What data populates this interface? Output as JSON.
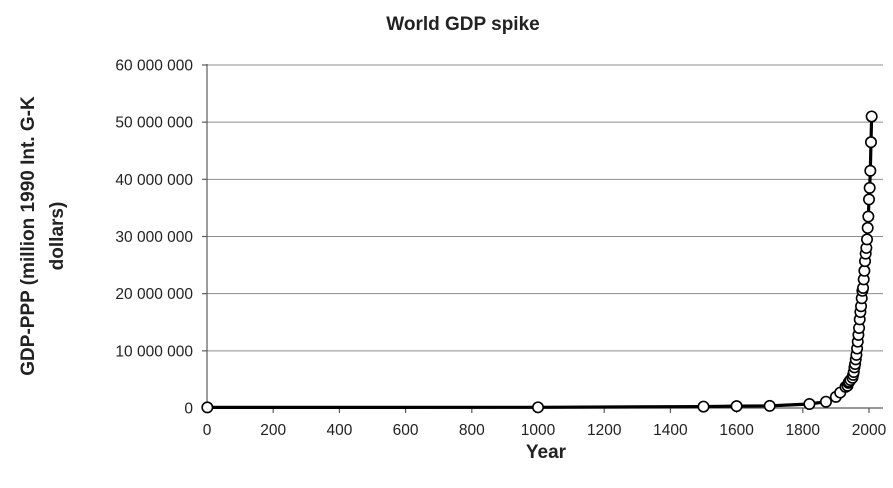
{
  "chart_data": {
    "type": "line",
    "title": "World GDP spike",
    "xlabel": "Year",
    "ylabel_lines": [
      "GDP-PPP (million 1990 Int. G-K",
      "dollars)"
    ],
    "xlim": [
      0,
      2000
    ],
    "ylim": [
      0,
      60000000
    ],
    "x_ticks": [
      0,
      200,
      400,
      600,
      800,
      1000,
      1200,
      1400,
      1600,
      1800,
      2000
    ],
    "y_ticks": [
      0,
      10000000,
      20000000,
      30000000,
      40000000,
      50000000,
      60000000
    ],
    "y_tick_labels": [
      "0",
      "10 000 000",
      "20 000 000",
      "30 000 000",
      "40 000 000",
      "50 000 000",
      "60 000 000"
    ],
    "grid": "horizontal",
    "legend": "none",
    "marker": "open-circle",
    "series": [
      {
        "x": [
          1,
          1000,
          1500,
          1600,
          1700,
          1820,
          1870,
          1900,
          1913,
          1929,
          1935,
          1938,
          1940,
          1944,
          1950,
          1952,
          1954,
          1956,
          1958,
          1960,
          1962,
          1964,
          1966,
          1968,
          1970,
          1972,
          1974,
          1976,
          1978,
          1980,
          1982,
          1984,
          1986,
          1988,
          1990,
          1992,
          1994,
          1996,
          1998,
          2000,
          2002,
          2004,
          2006,
          2008
        ],
        "y": [
          105000,
          120000,
          250000,
          330000,
          370000,
          700000,
          1100000,
          1950000,
          2700000,
          3700000,
          3900000,
          4400000,
          4600000,
          4900000,
          5300000,
          5800000,
          6300000,
          7100000,
          7700000,
          8500000,
          9300000,
          10400000,
          11600000,
          12800000,
          14000000,
          15500000,
          16800000,
          17800000,
          19200000,
          20500000,
          21000000,
          22500000,
          24000000,
          25700000,
          27000000,
          28000000,
          29500000,
          31500000,
          33500000,
          36500000,
          38500000,
          41500000,
          46500000,
          51000000
        ]
      }
    ]
  }
}
